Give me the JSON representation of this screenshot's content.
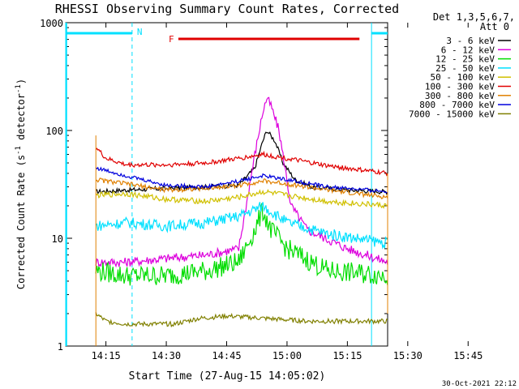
{
  "chart_data": {
    "type": "line",
    "title": "RHESSI Observing Summary Count Rates, Corrected",
    "xlabel": "Start Time (27-Aug-15 14:05:02)",
    "ylabel": "Corrected Count Rate (s",
    "ylabel_sup1": "-1",
    "ylabel_mid": " detector",
    "ylabel_sup2": "-1",
    "ylabel_end": ")",
    "y_scale": "log",
    "ylim": [
      1,
      1000
    ],
    "xlim_minutes": [
      5,
      85
    ],
    "xticks": [
      {
        "m": 15,
        "label": "14:15"
      },
      {
        "m": 30,
        "label": "14:30"
      },
      {
        "m": 45,
        "label": "14:45"
      },
      {
        "m": 60,
        "label": "15:00"
      },
      {
        "m": 75,
        "label": "15:15"
      },
      {
        "m": 90,
        "label": "15:30"
      },
      {
        "m": 105,
        "label": "15:45"
      }
    ],
    "yticks": [
      {
        "v": 1,
        "label": "1"
      },
      {
        "v": 10,
        "label": "10"
      },
      {
        "v": 100,
        "label": "100"
      },
      {
        "v": 1000,
        "label": "1000"
      }
    ],
    "legend_header": [
      "Det 1,3,5,6,7,",
      "Att 0"
    ],
    "legend_position": "right, outside plot",
    "footer_date": "30-Oct-2021 22:12",
    "annotations": {
      "night_label": "N",
      "night_color": "#00e0ff",
      "flare_label": "F",
      "flare_color": "#e00000",
      "night_intervals": [
        [
          5,
          21.5
        ],
        [
          81,
          101
        ]
      ],
      "flare_interval": [
        33,
        78
      ]
    },
    "series": [
      {
        "name": "3 - 6 keV",
        "color": "#000000",
        "points": [
          [
            12.5,
            27
          ],
          [
            20,
            28
          ],
          [
            30,
            29
          ],
          [
            40,
            30
          ],
          [
            48,
            31
          ],
          [
            52,
            45
          ],
          [
            54,
            80
          ],
          [
            55,
            100
          ],
          [
            57,
            80
          ],
          [
            59,
            50
          ],
          [
            62,
            35
          ],
          [
            66,
            30
          ],
          [
            75,
            28
          ],
          [
            85,
            27
          ]
        ]
      },
      {
        "name": "6 - 12 keV",
        "color": "#dd00dd",
        "points": [
          [
            12.5,
            6
          ],
          [
            20,
            6
          ],
          [
            30,
            6.5
          ],
          [
            40,
            7
          ],
          [
            48,
            8
          ],
          [
            52,
            60
          ],
          [
            54,
            150
          ],
          [
            55,
            200
          ],
          [
            56,
            170
          ],
          [
            58,
            100
          ],
          [
            61,
            20
          ],
          [
            65,
            12
          ],
          [
            75,
            8
          ],
          [
            85,
            6
          ]
        ]
      },
      {
        "name": "12 - 25 keV",
        "color": "#00dd00",
        "points": [
          [
            12.5,
            5
          ],
          [
            20,
            4.5
          ],
          [
            30,
            4.5
          ],
          [
            40,
            5
          ],
          [
            48,
            6
          ],
          [
            52,
            12
          ],
          [
            54,
            18
          ],
          [
            56,
            12
          ],
          [
            60,
            8
          ],
          [
            70,
            5
          ],
          [
            85,
            4.5
          ]
        ]
      },
      {
        "name": "25 - 50 keV",
        "color": "#00e0ff",
        "points": [
          [
            12.5,
            13
          ],
          [
            20,
            14
          ],
          [
            30,
            13
          ],
          [
            40,
            14
          ],
          [
            48,
            16
          ],
          [
            54,
            20
          ],
          [
            60,
            14
          ],
          [
            70,
            11
          ],
          [
            85,
            9
          ]
        ]
      },
      {
        "name": "50 - 100 keV",
        "color": "#d0c000",
        "points": [
          [
            12.5,
            25
          ],
          [
            20,
            26
          ],
          [
            30,
            23
          ],
          [
            40,
            22
          ],
          [
            48,
            24
          ],
          [
            54,
            27
          ],
          [
            60,
            25
          ],
          [
            70,
            22
          ],
          [
            85,
            20
          ]
        ]
      },
      {
        "name": "100 - 300 keV",
        "color": "#e00000",
        "points": [
          [
            12.5,
            70
          ],
          [
            15,
            55
          ],
          [
            20,
            48
          ],
          [
            30,
            48
          ],
          [
            40,
            50
          ],
          [
            48,
            55
          ],
          [
            54,
            60
          ],
          [
            60,
            55
          ],
          [
            70,
            47
          ],
          [
            85,
            40
          ]
        ]
      },
      {
        "name": "300 - 800 keV",
        "color": "#e08000",
        "points": [
          [
            12.5,
            35
          ],
          [
            20,
            32
          ],
          [
            30,
            28
          ],
          [
            40,
            29
          ],
          [
            48,
            31
          ],
          [
            54,
            34
          ],
          [
            60,
            32
          ],
          [
            70,
            28
          ],
          [
            85,
            24
          ]
        ]
      },
      {
        "name": "800 - 7000 keV",
        "color": "#0000dd",
        "points": [
          [
            12.5,
            45
          ],
          [
            20,
            38
          ],
          [
            30,
            31
          ],
          [
            40,
            30
          ],
          [
            48,
            34
          ],
          [
            54,
            38
          ],
          [
            60,
            35
          ],
          [
            70,
            30
          ],
          [
            85,
            27
          ]
        ]
      },
      {
        "name": "7000 - 15000 keV",
        "color": "#808000",
        "points": [
          [
            12.5,
            2
          ],
          [
            15,
            1.7
          ],
          [
            20,
            1.6
          ],
          [
            32,
            1.6
          ],
          [
            38,
            1.8
          ],
          [
            45,
            1.9
          ],
          [
            55,
            1.8
          ],
          [
            65,
            1.7
          ],
          [
            75,
            1.7
          ],
          [
            85,
            1.7
          ]
        ]
      }
    ]
  }
}
